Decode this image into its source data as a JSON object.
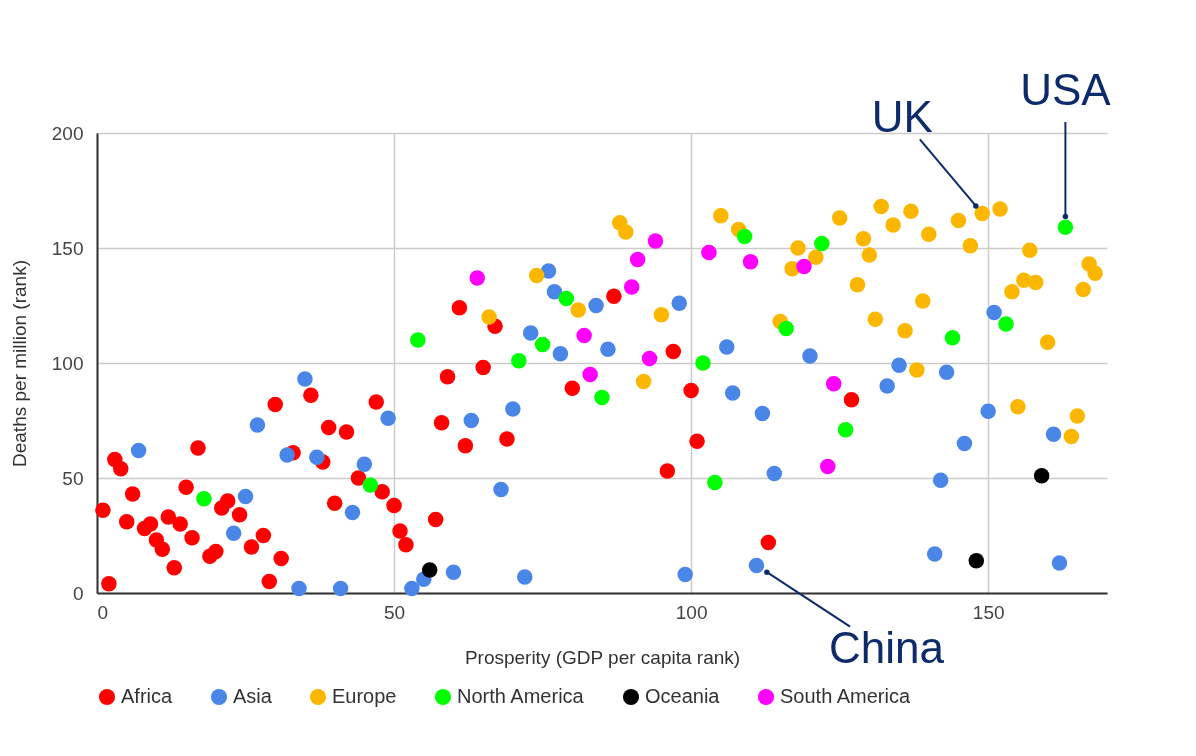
{
  "chart_data": {
    "type": "scatter",
    "xlabel": "Prosperity (GDP per capita rank)",
    "ylabel": "Deaths per million (rank)",
    "xlim": [
      0,
      170
    ],
    "ylim": [
      0,
      200
    ],
    "xticks": [
      0,
      50,
      100,
      150
    ],
    "yticks": [
      0,
      50,
      100,
      150,
      200
    ],
    "grid": true,
    "legend": "bottom",
    "marker": "circle",
    "series": [
      {
        "name": "Africa",
        "color": "#ff0000",
        "x": [
          1,
          2,
          3,
          4,
          5,
          6,
          8,
          9,
          10,
          11,
          12,
          13,
          14,
          15,
          16,
          17,
          19,
          20,
          21,
          22,
          24,
          26,
          28,
          29,
          30,
          31,
          33,
          36,
          38,
          39,
          40,
          42,
          44,
          47,
          48,
          50,
          51,
          52,
          57,
          58,
          59,
          61,
          62,
          65,
          67,
          69,
          80,
          87,
          96,
          97,
          100,
          101,
          113,
          127
        ],
        "values": [
          36,
          4,
          58,
          54,
          31,
          43,
          28,
          30,
          23,
          19,
          33,
          11,
          30,
          46,
          24,
          63,
          16,
          18,
          37,
          40,
          34,
          20,
          25,
          5,
          82,
          15,
          61,
          86,
          57,
          72,
          39,
          70,
          50,
          83,
          44,
          38,
          27,
          21,
          32,
          74,
          94,
          124,
          64,
          98,
          116,
          67,
          89,
          129,
          53,
          105,
          88,
          66,
          22,
          84
        ]
      },
      {
        "name": "Asia",
        "color": "#4a86e8",
        "x": [
          7,
          23,
          25,
          27,
          32,
          34,
          35,
          37,
          41,
          43,
          45,
          49,
          53,
          55,
          60,
          63,
          68,
          70,
          72,
          73,
          76,
          77,
          78,
          84,
          86,
          98,
          99,
          106,
          107,
          111,
          112,
          114,
          120,
          133,
          135,
          141,
          142,
          143,
          146,
          150,
          151,
          161,
          162
        ],
        "values": [
          62,
          26,
          42,
          73,
          60,
          2,
          93,
          59,
          2,
          35,
          56,
          76,
          2,
          6,
          9,
          75,
          45,
          80,
          7,
          113,
          140,
          131,
          104,
          125,
          106,
          126,
          8,
          107,
          87,
          12,
          78,
          52,
          103,
          90,
          99,
          17,
          49,
          96,
          65,
          79,
          122,
          69,
          13
        ]
      },
      {
        "name": "Europe",
        "color": "#fbb700",
        "x": [
          66,
          74,
          81,
          88,
          89,
          92,
          95,
          105,
          108,
          115,
          117,
          118,
          121,
          125,
          128,
          129,
          130,
          131,
          132,
          134,
          136,
          137,
          138,
          139,
          140,
          145,
          147,
          149,
          152,
          154,
          155,
          156,
          157,
          158,
          160,
          164,
          165,
          166,
          167,
          168
        ],
        "values": [
          120,
          138,
          123,
          161,
          157,
          92,
          121,
          164,
          158,
          118,
          141,
          150,
          146,
          163,
          134,
          154,
          147,
          119,
          168,
          160,
          114,
          166,
          97,
          127,
          156,
          162,
          151,
          165,
          167,
          131,
          81,
          136,
          149,
          135,
          109,
          68,
          77,
          132,
          143,
          139
        ]
      },
      {
        "name": "North America",
        "color": "#00ff00",
        "x": [
          18,
          46,
          54,
          71,
          75,
          79,
          85,
          102,
          104,
          109,
          116,
          122,
          126,
          144,
          153,
          163
        ],
        "values": [
          41,
          47,
          110,
          101,
          108,
          128,
          85,
          100,
          48,
          155,
          115,
          152,
          71,
          111,
          117,
          159
        ]
      },
      {
        "name": "Oceania",
        "color": "#000000",
        "x": [
          56,
          148,
          159
        ],
        "values": [
          10,
          14,
          51
        ]
      },
      {
        "name": "South America",
        "color": "#ff00ff",
        "x": [
          64,
          82,
          83,
          90,
          91,
          93,
          94,
          103,
          110,
          119,
          123,
          124
        ],
        "values": [
          137,
          112,
          95,
          133,
          145,
          102,
          153,
          148,
          144,
          142,
          55,
          91
        ]
      }
    ],
    "annotations": [
      {
        "text": "UK",
        "x": 149,
        "y": 165
      },
      {
        "text": "USA",
        "x": 163,
        "y": 159
      },
      {
        "text": "China",
        "x": 111,
        "y": 12
      }
    ]
  }
}
